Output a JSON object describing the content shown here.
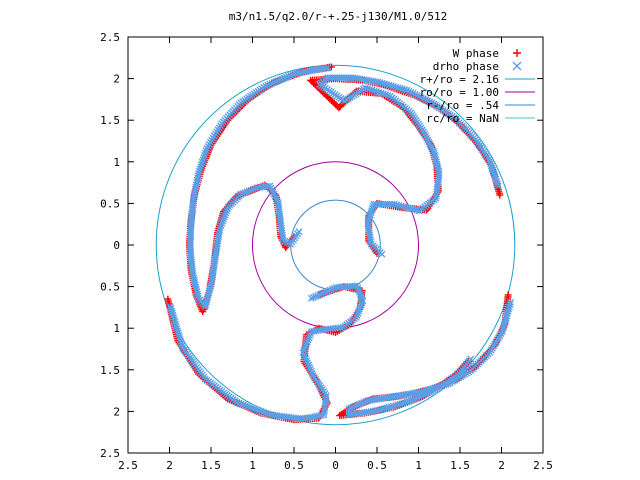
{
  "chart_data": {
    "type": "scatter",
    "title": "m3/n1.5/q2.0/r-+.25-j130/M1.0/512",
    "xlim": [
      -2.5,
      2.5
    ],
    "ylim": [
      -2.5,
      2.5
    ],
    "x_ticks": [
      -2.5,
      -2,
      -1.5,
      -1,
      -0.5,
      0,
      0.5,
      1,
      1.5,
      2,
      2.5
    ],
    "y_ticks": [
      -2.5,
      -2,
      -1.5,
      -1,
      -0.5,
      0,
      0.5,
      1,
      1.5,
      2,
      2.5
    ],
    "x_tick_labels": [
      "2.5",
      "2",
      "1.5",
      "1",
      "0.5",
      "0",
      "0.5",
      "1",
      "1.5",
      "2",
      "2.5"
    ],
    "y_tick_labels": [
      "2.5",
      "2",
      "1.5",
      "1",
      "0.5",
      "0",
      "0.5",
      "1",
      "1.5",
      "2",
      "2.5"
    ],
    "grid": false,
    "legend_position": "top-right",
    "series": [
      {
        "name": "W phase",
        "marker": "+",
        "color": "#ff0000",
        "arms": [
          [
            [
              -0.05,
              2.14
            ],
            [
              -0.4,
              2.08
            ],
            [
              -0.75,
              1.95
            ],
            [
              -1.05,
              1.75
            ],
            [
              -1.3,
              1.5
            ],
            [
              -1.5,
              1.2
            ],
            [
              -1.62,
              0.9
            ],
            [
              -1.7,
              0.6
            ],
            [
              -1.74,
              0.3
            ],
            [
              -1.76,
              0.0
            ],
            [
              -1.74,
              -0.3
            ],
            [
              -1.68,
              -0.6
            ],
            [
              -1.6,
              -0.8
            ],
            [
              -1.52,
              -0.55
            ],
            [
              -1.46,
              -0.2
            ],
            [
              -1.42,
              0.15
            ],
            [
              -1.35,
              0.4
            ],
            [
              -1.2,
              0.58
            ],
            [
              -1.0,
              0.66
            ],
            [
              -0.85,
              0.72
            ],
            [
              -0.72,
              0.6
            ],
            [
              -0.68,
              0.35
            ],
            [
              -0.66,
              0.1
            ],
            [
              -0.6,
              -0.03
            ],
            [
              -0.5,
              0.1
            ]
          ],
          [
            [
              -2.02,
              -0.65
            ],
            [
              -1.9,
              -1.15
            ],
            [
              -1.65,
              -1.55
            ],
            [
              -1.3,
              -1.85
            ],
            [
              -0.9,
              -2.02
            ],
            [
              -0.5,
              -2.1
            ],
            [
              -0.2,
              -2.08
            ],
            [
              -0.1,
              -1.9
            ],
            [
              -0.22,
              -1.65
            ],
            [
              -0.38,
              -1.4
            ],
            [
              -0.35,
              -1.08
            ],
            [
              -0.2,
              -1.0
            ],
            [
              0.0,
              -1.05
            ],
            [
              0.18,
              -0.95
            ],
            [
              0.3,
              -0.75
            ],
            [
              0.32,
              -0.55
            ],
            [
              0.1,
              -0.5
            ],
            [
              -0.2,
              -0.6
            ]
          ],
          [
            [
              2.08,
              -0.6
            ],
            [
              2.04,
              -0.95
            ],
            [
              1.92,
              -1.2
            ],
            [
              1.7,
              -1.45
            ],
            [
              1.45,
              -1.62
            ],
            [
              1.1,
              -1.75
            ],
            [
              0.75,
              -1.82
            ],
            [
              0.45,
              -1.85
            ],
            [
              0.2,
              -1.95
            ],
            [
              0.05,
              -2.05
            ],
            [
              0.35,
              -2.02
            ],
            [
              0.7,
              -1.95
            ],
            [
              1.05,
              -1.82
            ],
            [
              1.4,
              -1.6
            ],
            [
              1.6,
              -1.4
            ]
          ],
          [
            [
              1.98,
              0.6
            ],
            [
              1.88,
              0.95
            ],
            [
              1.72,
              1.2
            ],
            [
              1.5,
              1.45
            ],
            [
              1.25,
              1.65
            ],
            [
              0.95,
              1.8
            ],
            [
              0.6,
              1.92
            ],
            [
              0.35,
              1.98
            ],
            [
              0.0,
              2.0
            ],
            [
              -0.3,
              1.98
            ],
            [
              0.04,
              1.65
            ],
            [
              0.25,
              1.85
            ],
            [
              0.55,
              1.82
            ],
            [
              0.82,
              1.65
            ],
            [
              1.0,
              1.42
            ],
            [
              1.15,
              1.2
            ],
            [
              1.22,
              0.95
            ],
            [
              1.24,
              0.65
            ],
            [
              1.1,
              0.42
            ],
            [
              0.8,
              0.45
            ],
            [
              0.5,
              0.5
            ],
            [
              0.4,
              0.35
            ],
            [
              0.4,
              0.05
            ],
            [
              0.5,
              -0.1
            ]
          ]
        ]
      },
      {
        "name": "drho phase",
        "marker": "x",
        "color": "#5aa0e8",
        "arms": [
          [
            [
              -0.1,
              2.12
            ],
            [
              -0.5,
              2.05
            ],
            [
              -0.85,
              1.9
            ],
            [
              -1.15,
              1.7
            ],
            [
              -1.38,
              1.45
            ],
            [
              -1.56,
              1.15
            ],
            [
              -1.66,
              0.85
            ],
            [
              -1.72,
              0.55
            ],
            [
              -1.75,
              0.25
            ],
            [
              -1.76,
              -0.05
            ],
            [
              -1.73,
              -0.35
            ],
            [
              -1.66,
              -0.65
            ],
            [
              -1.58,
              -0.75
            ],
            [
              -1.5,
              -0.45
            ],
            [
              -1.45,
              -0.1
            ],
            [
              -1.4,
              0.2
            ],
            [
              -1.3,
              0.45
            ],
            [
              -1.15,
              0.6
            ],
            [
              -0.95,
              0.68
            ],
            [
              -0.8,
              0.7
            ],
            [
              -0.7,
              0.5
            ],
            [
              -0.67,
              0.25
            ],
            [
              -0.64,
              0.05
            ],
            [
              -0.55,
              0.0
            ],
            [
              -0.45,
              0.15
            ]
          ],
          [
            [
              -2.0,
              -0.75
            ],
            [
              -1.85,
              -1.25
            ],
            [
              -1.58,
              -1.62
            ],
            [
              -1.2,
              -1.9
            ],
            [
              -0.8,
              -2.05
            ],
            [
              -0.4,
              -2.1
            ],
            [
              -0.15,
              -2.05
            ],
            [
              -0.12,
              -1.82
            ],
            [
              -0.28,
              -1.58
            ],
            [
              -0.4,
              -1.3
            ],
            [
              -0.3,
              -1.05
            ],
            [
              -0.1,
              -1.02
            ],
            [
              0.08,
              -1.0
            ],
            [
              0.24,
              -0.88
            ],
            [
              0.32,
              -0.68
            ],
            [
              0.25,
              -0.5
            ],
            [
              0.0,
              -0.52
            ],
            [
              -0.3,
              -0.65
            ]
          ],
          [
            [
              2.1,
              -0.7
            ],
            [
              2.0,
              -1.05
            ],
            [
              1.85,
              -1.3
            ],
            [
              1.62,
              -1.52
            ],
            [
              1.35,
              -1.68
            ],
            [
              1.0,
              -1.78
            ],
            [
              0.65,
              -1.84
            ],
            [
              0.38,
              -1.88
            ],
            [
              0.15,
              -1.98
            ],
            [
              0.15,
              -2.05
            ],
            [
              0.5,
              -2.0
            ],
            [
              0.85,
              -1.9
            ],
            [
              1.2,
              -1.75
            ],
            [
              1.48,
              -1.55
            ],
            [
              1.62,
              -1.38
            ]
          ],
          [
            [
              1.95,
              0.7
            ],
            [
              1.84,
              1.02
            ],
            [
              1.66,
              1.28
            ],
            [
              1.42,
              1.52
            ],
            [
              1.15,
              1.7
            ],
            [
              0.85,
              1.85
            ],
            [
              0.5,
              1.95
            ],
            [
              0.2,
              2.0
            ],
            [
              -0.1,
              2.0
            ],
            [
              -0.2,
              1.92
            ],
            [
              0.1,
              1.72
            ],
            [
              0.35,
              1.88
            ],
            [
              0.65,
              1.78
            ],
            [
              0.9,
              1.58
            ],
            [
              1.05,
              1.35
            ],
            [
              1.18,
              1.1
            ],
            [
              1.24,
              0.85
            ],
            [
              1.2,
              0.55
            ],
            [
              1.0,
              0.4
            ],
            [
              0.7,
              0.48
            ],
            [
              0.45,
              0.48
            ],
            [
              0.38,
              0.25
            ],
            [
              0.42,
              0.0
            ],
            [
              0.55,
              -0.12
            ]
          ]
        ]
      },
      {
        "name": "r+/ro = 2.16",
        "type": "circle",
        "radius": 2.16,
        "color": "#1fa0c8"
      },
      {
        "name": "ro/ro = 1.00",
        "type": "circle",
        "radius": 1.0,
        "color": "#a000a0"
      },
      {
        "name": "r-/ro = .54",
        "type": "circle",
        "radius": 0.54,
        "color": "#3a8acb"
      },
      {
        "name": "rc/ro = NaN",
        "type": "circle",
        "radius": null,
        "color": "#40c8c8"
      }
    ]
  }
}
